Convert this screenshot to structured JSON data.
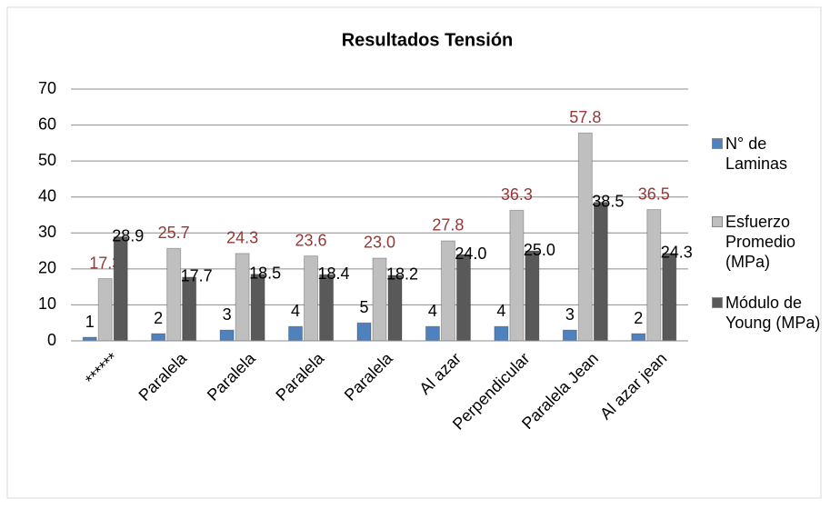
{
  "chart_data": {
    "type": "bar",
    "title": "Resultados Tensión",
    "categories": [
      "******",
      "Paralela",
      "Paralela",
      "Paralela",
      "Paralela",
      "Al azar",
      "Perpendicular",
      "Paralela Jean",
      "Al azar jean"
    ],
    "series": [
      {
        "name": "N° de Laminas",
        "color": "#4f81bd",
        "label_color": "#000000",
        "values": [
          1,
          2,
          3,
          4,
          5,
          4,
          4,
          3,
          2
        ]
      },
      {
        "name": "Esfuerzo Promedio (MPa)",
        "color": "#bfbfbf",
        "label_color": "#953735",
        "values": [
          17.3,
          25.7,
          24.3,
          23.6,
          23.0,
          27.8,
          36.3,
          57.8,
          36.5
        ],
        "value_labels": [
          "17.3",
          "25.7",
          "24.3",
          "23.6",
          "23.0",
          "27.8",
          "36.3",
          "57.8",
          "36.5"
        ]
      },
      {
        "name": "Módulo de Young (MPa)",
        "color": "#595959",
        "label_color": "#000000",
        "values": [
          28.9,
          17.7,
          18.5,
          18.4,
          18.2,
          24.0,
          25.0,
          38.5,
          24.3
        ],
        "value_labels": [
          "28.9",
          "17.7",
          "18.5",
          "18.4",
          "18.2",
          "24.0",
          "25.0",
          "38.5",
          "24.3"
        ]
      }
    ],
    "ylim": [
      0,
      70
    ],
    "yticks": [
      0,
      10,
      20,
      30,
      40,
      50,
      60,
      70
    ],
    "grid": true,
    "legend": "right"
  }
}
